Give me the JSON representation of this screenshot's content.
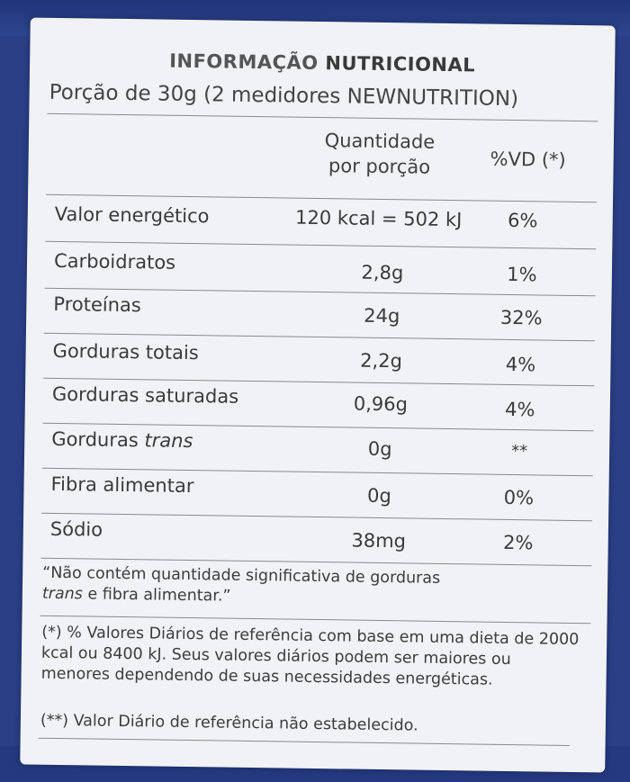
{
  "title": {
    "part1": "INFORMAÇÃO",
    "part2": "NUTRICIONAL"
  },
  "portion": "Porção de 30g (2 medidores NEWNUTRITION)",
  "headers": {
    "quantity_line1": "Quantidade",
    "quantity_line2": "por porção",
    "vd": "%VD (*)"
  },
  "rows": [
    {
      "name": "Valor energético",
      "qty": "120 kcal = 502 kJ",
      "vd": "6%"
    },
    {
      "name": "Carboidratos",
      "qty": "2,8g",
      "vd": "1%"
    },
    {
      "name": "Proteínas",
      "qty": "24g",
      "vd": "32%"
    },
    {
      "name": "Gorduras totais",
      "qty": "2,2g",
      "vd": "4%"
    },
    {
      "name": "Gorduras saturadas",
      "qty": "0,96g",
      "vd": "4%"
    },
    {
      "name_prefix": "Gorduras ",
      "name_italic": "trans",
      "qty": "0g",
      "vd": "**"
    },
    {
      "name": "Fibra alimentar",
      "qty": "0g",
      "vd": "0%"
    },
    {
      "name": "Sódio",
      "qty": "38mg",
      "vd": "2%"
    }
  ],
  "notes": {
    "not_contain_1": "“Não contém quantidade significativa de gorduras",
    "not_contain_italic": "trans",
    "not_contain_2": " e fibra alimentar.”",
    "vd_note": "(*) % Valores Diários de referência com base em uma dieta de 2000 kcal ou 8400 kJ. Seus valores diários podem ser maiores ou menores dependendo de suas necessidades energéticas.",
    "vd_not_established": "(**) Valor Diário de referência não estabelecido."
  },
  "colors": {
    "label_bg": "#f1f2f5",
    "package_blue": "#2a3f86",
    "text": "#3a3a3a"
  }
}
